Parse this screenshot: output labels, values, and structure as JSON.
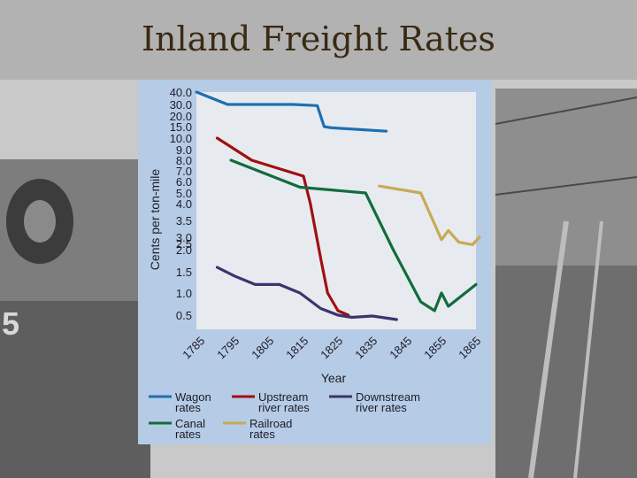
{
  "slide": {
    "title": "Inland Freight Rates"
  },
  "colors": {
    "panel": "#b6cbe5",
    "plot": "#e7ebf0",
    "wagon": "#1f6fb0",
    "upstream": "#a01010",
    "downstream": "#3a356c",
    "canal": "#126c3c",
    "railroad": "#c7aa55"
  },
  "chart_data": {
    "type": "line",
    "title": "",
    "xlabel": "Year",
    "ylabel": "Cents per ton-mile",
    "y_scale": "log",
    "xlim": [
      1785,
      1865
    ],
    "x_ticks": [
      "1785",
      "1795",
      "1805",
      "1815",
      "1825",
      "1835",
      "1845",
      "1855",
      "1865"
    ],
    "y_ticks": [
      "40.0",
      "30.0",
      "20.0",
      "15.0",
      "10.0",
      "9.0",
      "8.0",
      "7.0",
      "6.0",
      "5.0",
      "4.0",
      "3.5",
      "3.0",
      "2.5",
      "2.0",
      "1.5",
      "1.0",
      "0.5"
    ],
    "grid": false,
    "legend_position": "bottom",
    "series": [
      {
        "name": "Wagon rates",
        "color": "#1f6fb0",
        "x": [
          1784,
          1793,
          1812,
          1819,
          1821,
          1823,
          1839
        ],
        "y": [
          40.0,
          30.0,
          30.0,
          29.0,
          15.0,
          14.5,
          13.0
        ]
      },
      {
        "name": "Upstream river rates",
        "color": "#a01010",
        "x": [
          1790,
          1800,
          1815,
          1817,
          1820,
          1822,
          1825,
          1828
        ],
        "y": [
          10.0,
          8.0,
          6.5,
          4.0,
          1.8,
          1.0,
          0.6,
          0.5
        ]
      },
      {
        "name": "Downstream river rates",
        "color": "#3a356c",
        "x": [
          1790,
          1795,
          1801,
          1808,
          1814,
          1820,
          1825,
          1829,
          1835,
          1842
        ],
        "y": [
          1.6,
          1.4,
          1.2,
          1.2,
          1.0,
          0.65,
          0.5,
          0.45,
          0.48,
          0.4
        ]
      },
      {
        "name": "Canal rates",
        "color": "#126c3c",
        "x": [
          1794,
          1814,
          1833,
          1841,
          1849,
          1853,
          1855,
          1857,
          1865
        ],
        "y": [
          8.0,
          5.5,
          5.0,
          2.0,
          0.8,
          0.6,
          1.0,
          0.7,
          1.2
        ]
      },
      {
        "name": "Railroad rates",
        "color": "#c7aa55",
        "x": [
          1837,
          1849,
          1855,
          1857,
          1860,
          1864,
          1866
        ],
        "y": [
          5.6,
          5.0,
          2.8,
          3.2,
          2.6,
          2.4,
          3.0
        ]
      }
    ],
    "legend": [
      {
        "line1": "Wagon",
        "line2": "rates",
        "color": "#1f6fb0"
      },
      {
        "line1": "Upstream",
        "line2": "river rates",
        "color": "#a01010"
      },
      {
        "line1": "Downstream",
        "line2": "river rates",
        "color": "#3a356c"
      },
      {
        "line1": "Canal",
        "line2": "rates",
        "color": "#126c3c"
      },
      {
        "line1": "Railroad",
        "line2": "rates",
        "color": "#c7aa55"
      }
    ]
  }
}
